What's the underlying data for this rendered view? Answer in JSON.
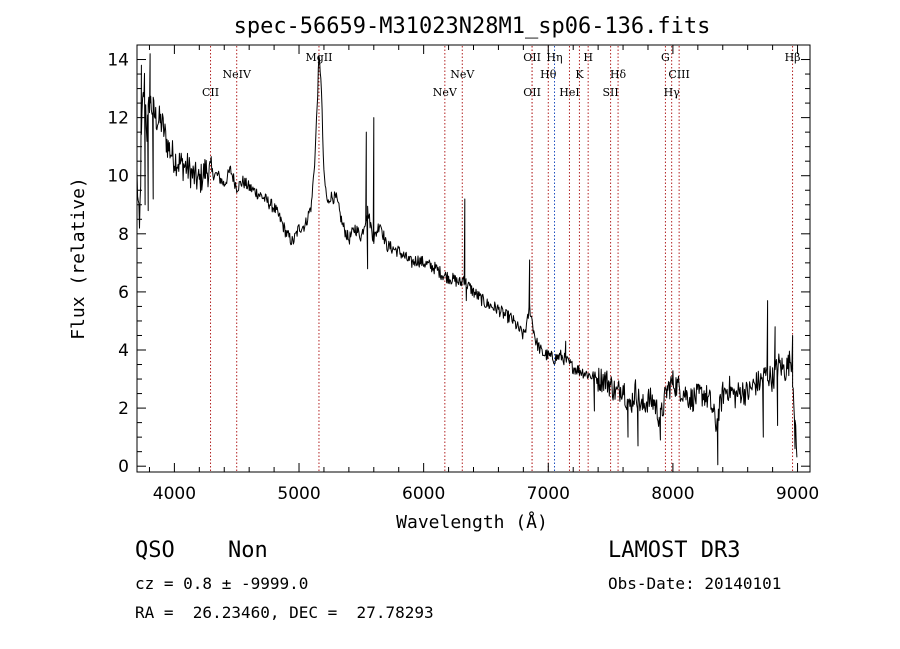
{
  "chart_data": {
    "type": "line",
    "title": "spec-56659-M31023N28M1_sp06-136.fits",
    "xlabel": "Wavelength (Å)",
    "ylabel": "Flux (relative)",
    "xlim": [
      3700,
      9100
    ],
    "ylim": [
      -0.2,
      14.5
    ],
    "x_ticks": [
      4000,
      5000,
      6000,
      7000,
      8000,
      9000
    ],
    "y_ticks": [
      0,
      2,
      4,
      6,
      8,
      10,
      12,
      14
    ],
    "line_color": "#000000",
    "marker_color": "#b22222",
    "spectrum_anchors": [
      [
        3700,
        10.0
      ],
      [
        3720,
        8.0
      ],
      [
        3740,
        12.0
      ],
      [
        3760,
        13.2
      ],
      [
        3780,
        11.5
      ],
      [
        3800,
        12.6
      ],
      [
        3850,
        12.0
      ],
      [
        3900,
        11.8
      ],
      [
        3950,
        11.0
      ],
      [
        4000,
        10.6
      ],
      [
        4050,
        10.4
      ],
      [
        4100,
        10.3
      ],
      [
        4150,
        10.0
      ],
      [
        4200,
        9.8
      ],
      [
        4250,
        10.2
      ],
      [
        4300,
        10.1
      ],
      [
        4350,
        10.0
      ],
      [
        4400,
        9.7
      ],
      [
        4450,
        10.2
      ],
      [
        4500,
        9.6
      ],
      [
        4550,
        9.8
      ],
      [
        4600,
        9.6
      ],
      [
        4700,
        9.3
      ],
      [
        4800,
        8.9
      ],
      [
        4850,
        8.5
      ],
      [
        4900,
        8.0
      ],
      [
        4950,
        7.7
      ],
      [
        5000,
        8.2
      ],
      [
        5050,
        8.3
      ],
      [
        5100,
        9.0
      ],
      [
        5130,
        10.8
      ],
      [
        5160,
        14.0
      ],
      [
        5175,
        13.5
      ],
      [
        5200,
        10.0
      ],
      [
        5230,
        9.0
      ],
      [
        5250,
        9.3
      ],
      [
        5300,
        9.2
      ],
      [
        5350,
        8.3
      ],
      [
        5400,
        7.8
      ],
      [
        5450,
        8.2
      ],
      [
        5500,
        7.9
      ],
      [
        5550,
        8.8
      ],
      [
        5600,
        7.8
      ],
      [
        5650,
        8.4
      ],
      [
        5700,
        7.6
      ],
      [
        5750,
        7.5
      ],
      [
        5800,
        7.4
      ],
      [
        5850,
        7.2
      ],
      [
        5900,
        7.0
      ],
      [
        5950,
        7.1
      ],
      [
        6000,
        7.0
      ],
      [
        6050,
        6.9
      ],
      [
        6100,
        6.8
      ],
      [
        6150,
        6.6
      ],
      [
        6200,
        6.5
      ],
      [
        6250,
        6.4
      ],
      [
        6300,
        6.3
      ],
      [
        6320,
        6.5
      ],
      [
        6340,
        6.3
      ],
      [
        6400,
        6.0
      ],
      [
        6450,
        5.8
      ],
      [
        6500,
        5.6
      ],
      [
        6550,
        5.5
      ],
      [
        6600,
        5.4
      ],
      [
        6650,
        5.2
      ],
      [
        6700,
        5.1
      ],
      [
        6750,
        4.8
      ],
      [
        6800,
        4.5
      ],
      [
        6830,
        4.9
      ],
      [
        6850,
        5.5
      ],
      [
        6870,
        5.0
      ],
      [
        6900,
        4.3
      ],
      [
        6950,
        3.9
      ],
      [
        7000,
        3.8
      ],
      [
        7050,
        3.7
      ],
      [
        7100,
        3.8
      ],
      [
        7150,
        3.6
      ],
      [
        7200,
        3.4
      ],
      [
        7250,
        3.3
      ],
      [
        7300,
        3.2
      ],
      [
        7350,
        3.1
      ],
      [
        7400,
        3.0
      ],
      [
        7450,
        3.0
      ],
      [
        7500,
        2.8
      ],
      [
        7550,
        2.5
      ],
      [
        7600,
        2.8
      ],
      [
        7650,
        2.0
      ],
      [
        7700,
        2.6
      ],
      [
        7750,
        2.0
      ],
      [
        7800,
        2.3
      ],
      [
        7850,
        2.2
      ],
      [
        7900,
        1.6
      ],
      [
        7950,
        2.6
      ],
      [
        8000,
        2.9
      ],
      [
        8050,
        2.7
      ],
      [
        8100,
        2.5
      ],
      [
        8150,
        2.3
      ],
      [
        8200,
        2.4
      ],
      [
        8250,
        2.5
      ],
      [
        8300,
        2.2
      ],
      [
        8350,
        1.4
      ],
      [
        8400,
        2.5
      ],
      [
        8450,
        2.7
      ],
      [
        8500,
        2.4
      ],
      [
        8550,
        2.6
      ],
      [
        8600,
        2.5
      ],
      [
        8650,
        2.8
      ],
      [
        8700,
        2.9
      ],
      [
        8750,
        3.2
      ],
      [
        8800,
        3.0
      ],
      [
        8850,
        3.5
      ],
      [
        8900,
        3.3
      ],
      [
        8950,
        3.7
      ],
      [
        8970,
        2.5
      ],
      [
        8990,
        0.5
      ]
    ],
    "spikes": [
      [
        3735,
        13.8
      ],
      [
        3765,
        9.0
      ],
      [
        3790,
        8.8
      ],
      [
        3805,
        14.2
      ],
      [
        3830,
        9.2
      ],
      [
        5540,
        11.5
      ],
      [
        5550,
        6.8
      ],
      [
        5600,
        12.0
      ],
      [
        6330,
        9.2
      ],
      [
        6342,
        5.7
      ],
      [
        6850,
        7.1
      ],
      [
        7140,
        4.3
      ],
      [
        7370,
        1.9
      ],
      [
        7640,
        1.0
      ],
      [
        7720,
        0.7
      ],
      [
        7900,
        0.9
      ],
      [
        8360,
        0.05
      ],
      [
        8725,
        1.0
      ],
      [
        8760,
        5.7
      ],
      [
        8820,
        4.8
      ],
      [
        8840,
        1.4
      ],
      [
        8960,
        4.5
      ],
      [
        8980,
        0.6
      ]
    ],
    "line_markers": [
      {
        "label": "CII",
        "x": 4290,
        "tier": "low",
        "color": "#b22222"
      },
      {
        "label": "NeIV",
        "x": 4500,
        "tier": "mid",
        "color": "#b22222"
      },
      {
        "label": "MgII",
        "x": 5160,
        "tier": "top",
        "color": "#b22222"
      },
      {
        "label": "NeV",
        "x": 6170,
        "tier": "low",
        "color": "#b22222"
      },
      {
        "label": "NeV",
        "x": 6310,
        "tier": "mid",
        "color": "#b22222"
      },
      {
        "label": "OII",
        "x": 6870,
        "tier": "top",
        "color": "#b22222"
      },
      {
        "label": "OII",
        "x": 6870,
        "tier": "low",
        "color": "#b22222"
      },
      {
        "label": "Hθ",
        "x": 7000,
        "tier": "mid",
        "color": "#b22222"
      },
      {
        "label": "Hη",
        "x": 7050,
        "tier": "top",
        "color": "#1f4fbf"
      },
      {
        "label": "HeI",
        "x": 7170,
        "tier": "low",
        "color": "#b22222"
      },
      {
        "label": "K",
        "x": 7250,
        "tier": "mid",
        "color": "#b22222"
      },
      {
        "label": "H",
        "x": 7320,
        "tier": "top",
        "color": "#b22222"
      },
      {
        "label": "SII",
        "x": 7500,
        "tier": "low",
        "color": "#b22222"
      },
      {
        "label": "Hδ",
        "x": 7560,
        "tier": "mid",
        "color": "#b22222"
      },
      {
        "label": "G",
        "x": 7940,
        "tier": "top",
        "color": "#b22222"
      },
      {
        "label": "Hγ",
        "x": 7990,
        "tier": "low",
        "color": "#b22222"
      },
      {
        "label": "CIII",
        "x": 8050,
        "tier": "mid",
        "color": "#b22222"
      },
      {
        "label": "Hβ",
        "x": 8960,
        "tier": "top",
        "color": "#b22222"
      }
    ]
  },
  "info": {
    "object_class": "QSO",
    "subclass": "Non",
    "cz_line": "cz = 0.8 ± -9999.0",
    "radec_line": "RA =  26.23460, DEC =  27.78293",
    "survey": "LAMOST DR3",
    "obs_date_line": "Obs-Date: 20140101"
  }
}
